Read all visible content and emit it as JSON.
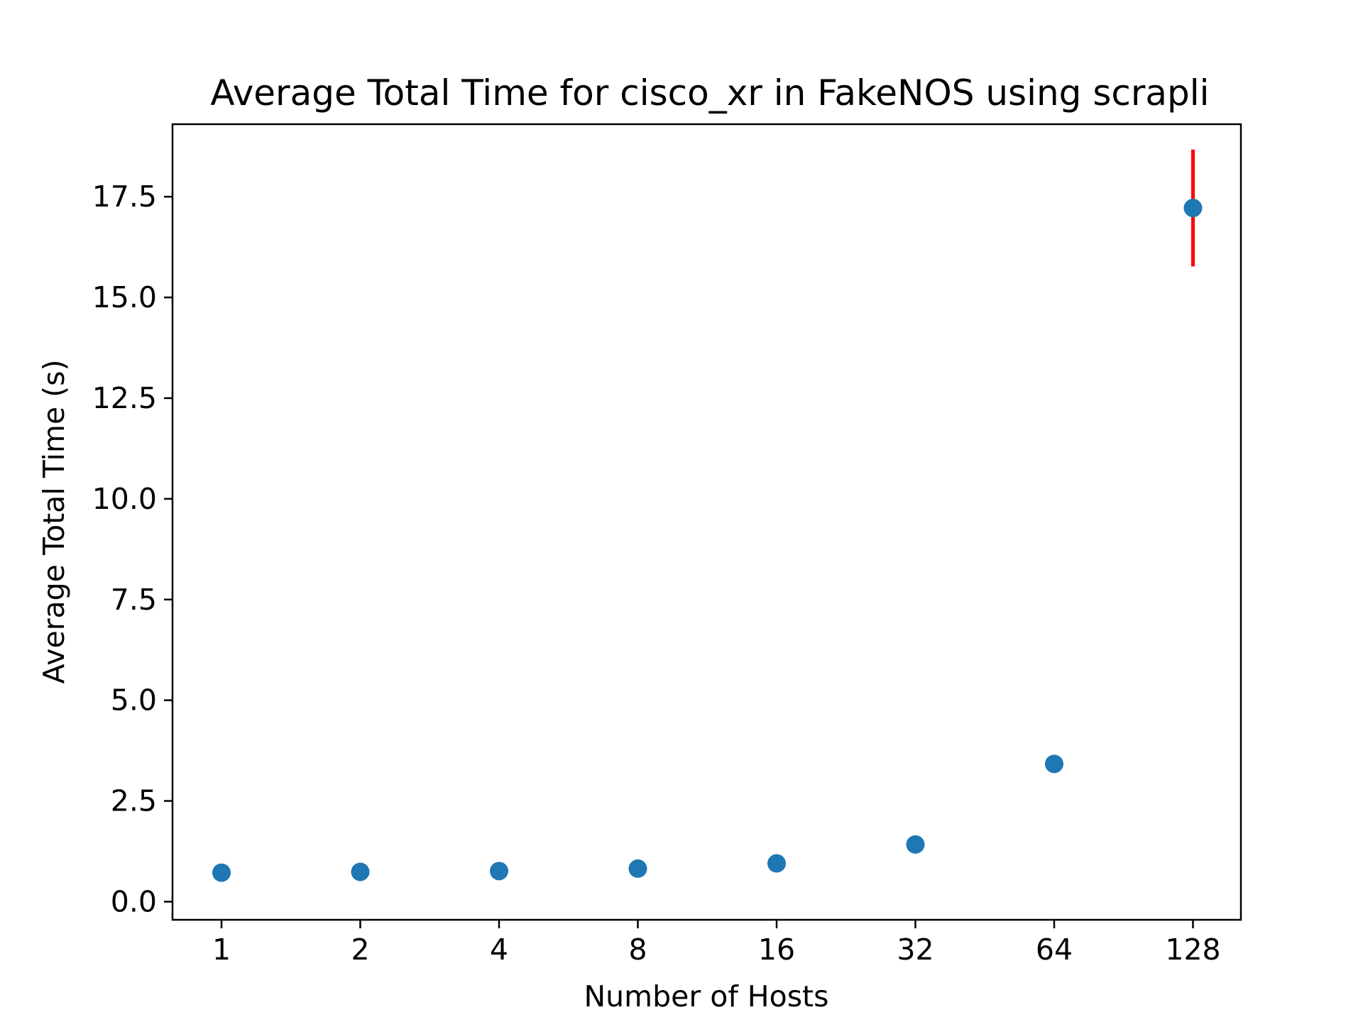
{
  "chart_data": {
    "type": "scatter",
    "title": "Average Total Time for cisco_xr in FakeNOS using scrapli",
    "xlabel": "Number of Hosts",
    "ylabel": "Average Total Time (s)",
    "x_categories": [
      "1",
      "2",
      "4",
      "8",
      "16",
      "32",
      "64",
      "128"
    ],
    "ylim": [
      -0.45,
      19.3
    ],
    "y_ticks": [
      0.0,
      2.5,
      5.0,
      7.5,
      10.0,
      12.5,
      15.0,
      17.5
    ],
    "y_tick_labels": [
      "0.0",
      "2.5",
      "5.0",
      "7.5",
      "10.0",
      "12.5",
      "15.0",
      "17.5"
    ],
    "series": [
      {
        "values": [
          0.72,
          0.74,
          0.76,
          0.82,
          0.95,
          1.42,
          3.42,
          17.22
        ],
        "errors": [
          0.0,
          0.0,
          0.0,
          0.0,
          0.0,
          0.0,
          0.0,
          1.45
        ]
      }
    ],
    "grid": false,
    "colors": {
      "point": "#1f77b4",
      "error_bar": "#ff0000"
    }
  }
}
